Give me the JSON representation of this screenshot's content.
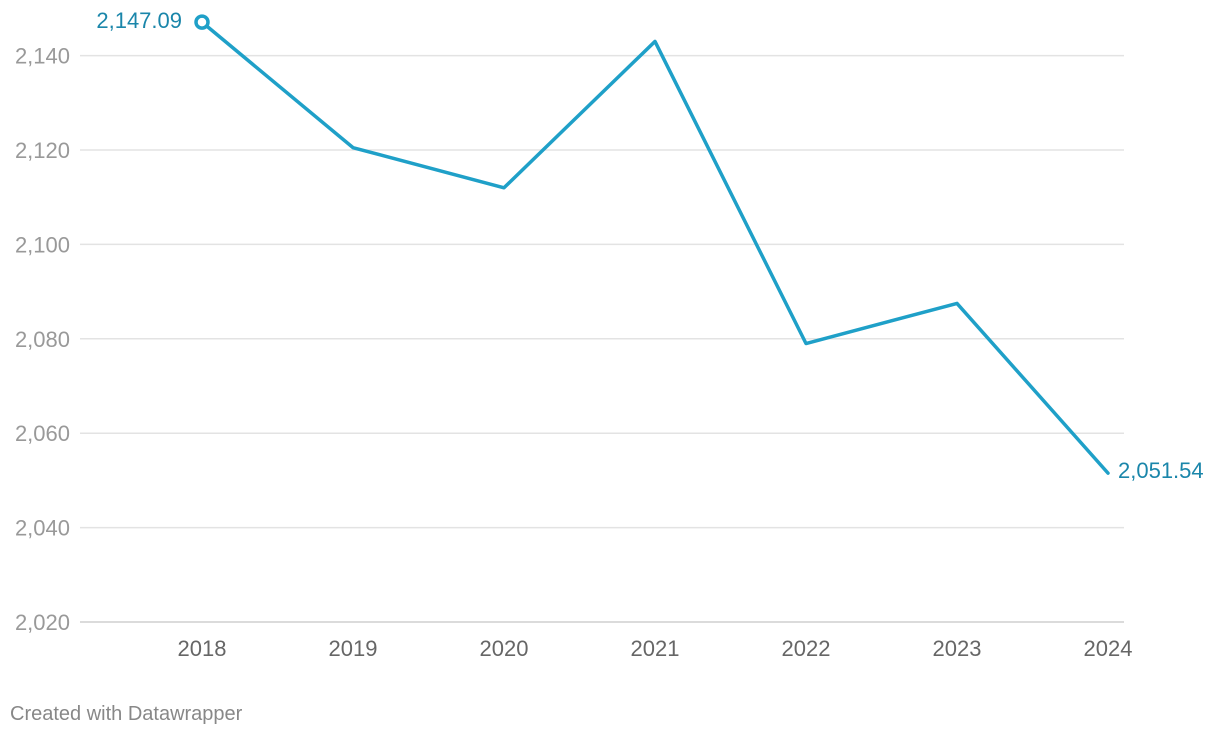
{
  "chart_data": {
    "type": "line",
    "title": "",
    "xlabel": "",
    "ylabel": "",
    "x": [
      "2018",
      "2019",
      "2020",
      "2021",
      "2022",
      "2023",
      "2024"
    ],
    "series": [
      {
        "values": [
          2147.09,
          2120.5,
          2112,
          2143,
          2079,
          2087.5,
          2051.54
        ]
      }
    ],
    "ylim": [
      2020,
      2147.09
    ],
    "y_ticks": [
      "2,020",
      "2,040",
      "2,060",
      "2,080",
      "2,100",
      "2,120",
      "2,140"
    ],
    "y_tick_values": [
      2020,
      2040,
      2060,
      2080,
      2100,
      2120,
      2140
    ],
    "annotations": {
      "first": "2,147.09",
      "last": "2,051.54"
    },
    "grid": "horizontal",
    "legend": "none"
  },
  "colors": {
    "line": "#1fa0c8",
    "label": "#1a86aa",
    "grid": "#e3e3e3",
    "axis_text": "#999999",
    "x_text": "#666666"
  },
  "footer": {
    "credit": "Created with Datawrapper"
  }
}
